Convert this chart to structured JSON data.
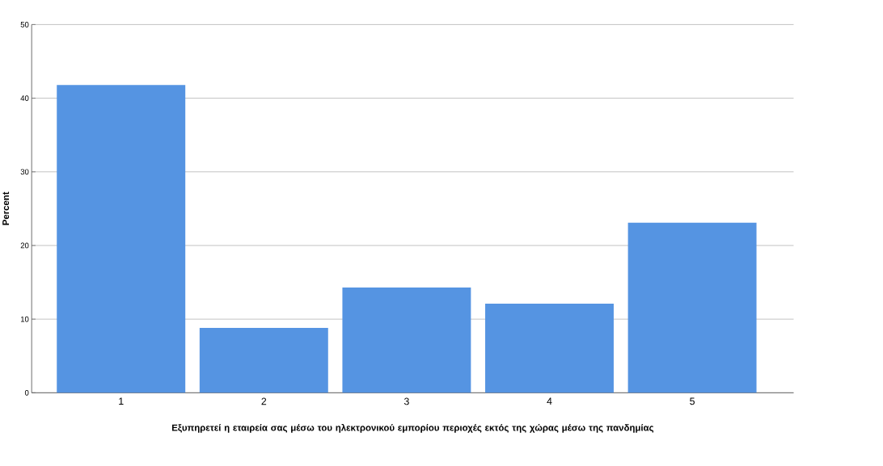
{
  "chart_data": {
    "type": "bar",
    "xlabel": "Εξυπηρετεί η εταιρεία σας μέσω του ηλεκτρονικού εμπορίου περιοχές εκτός της χώρας μέσω της πανδημίας",
    "ylabel": "Percent",
    "categories": [
      "1",
      "2",
      "3",
      "4",
      "5"
    ],
    "values": [
      41.8,
      8.8,
      14.3,
      12.1,
      23.1
    ],
    "color": "#5594e2",
    "ylim": [
      0,
      50
    ],
    "yticks": [
      0,
      10,
      20,
      30,
      40,
      50
    ],
    "grid": "y"
  }
}
